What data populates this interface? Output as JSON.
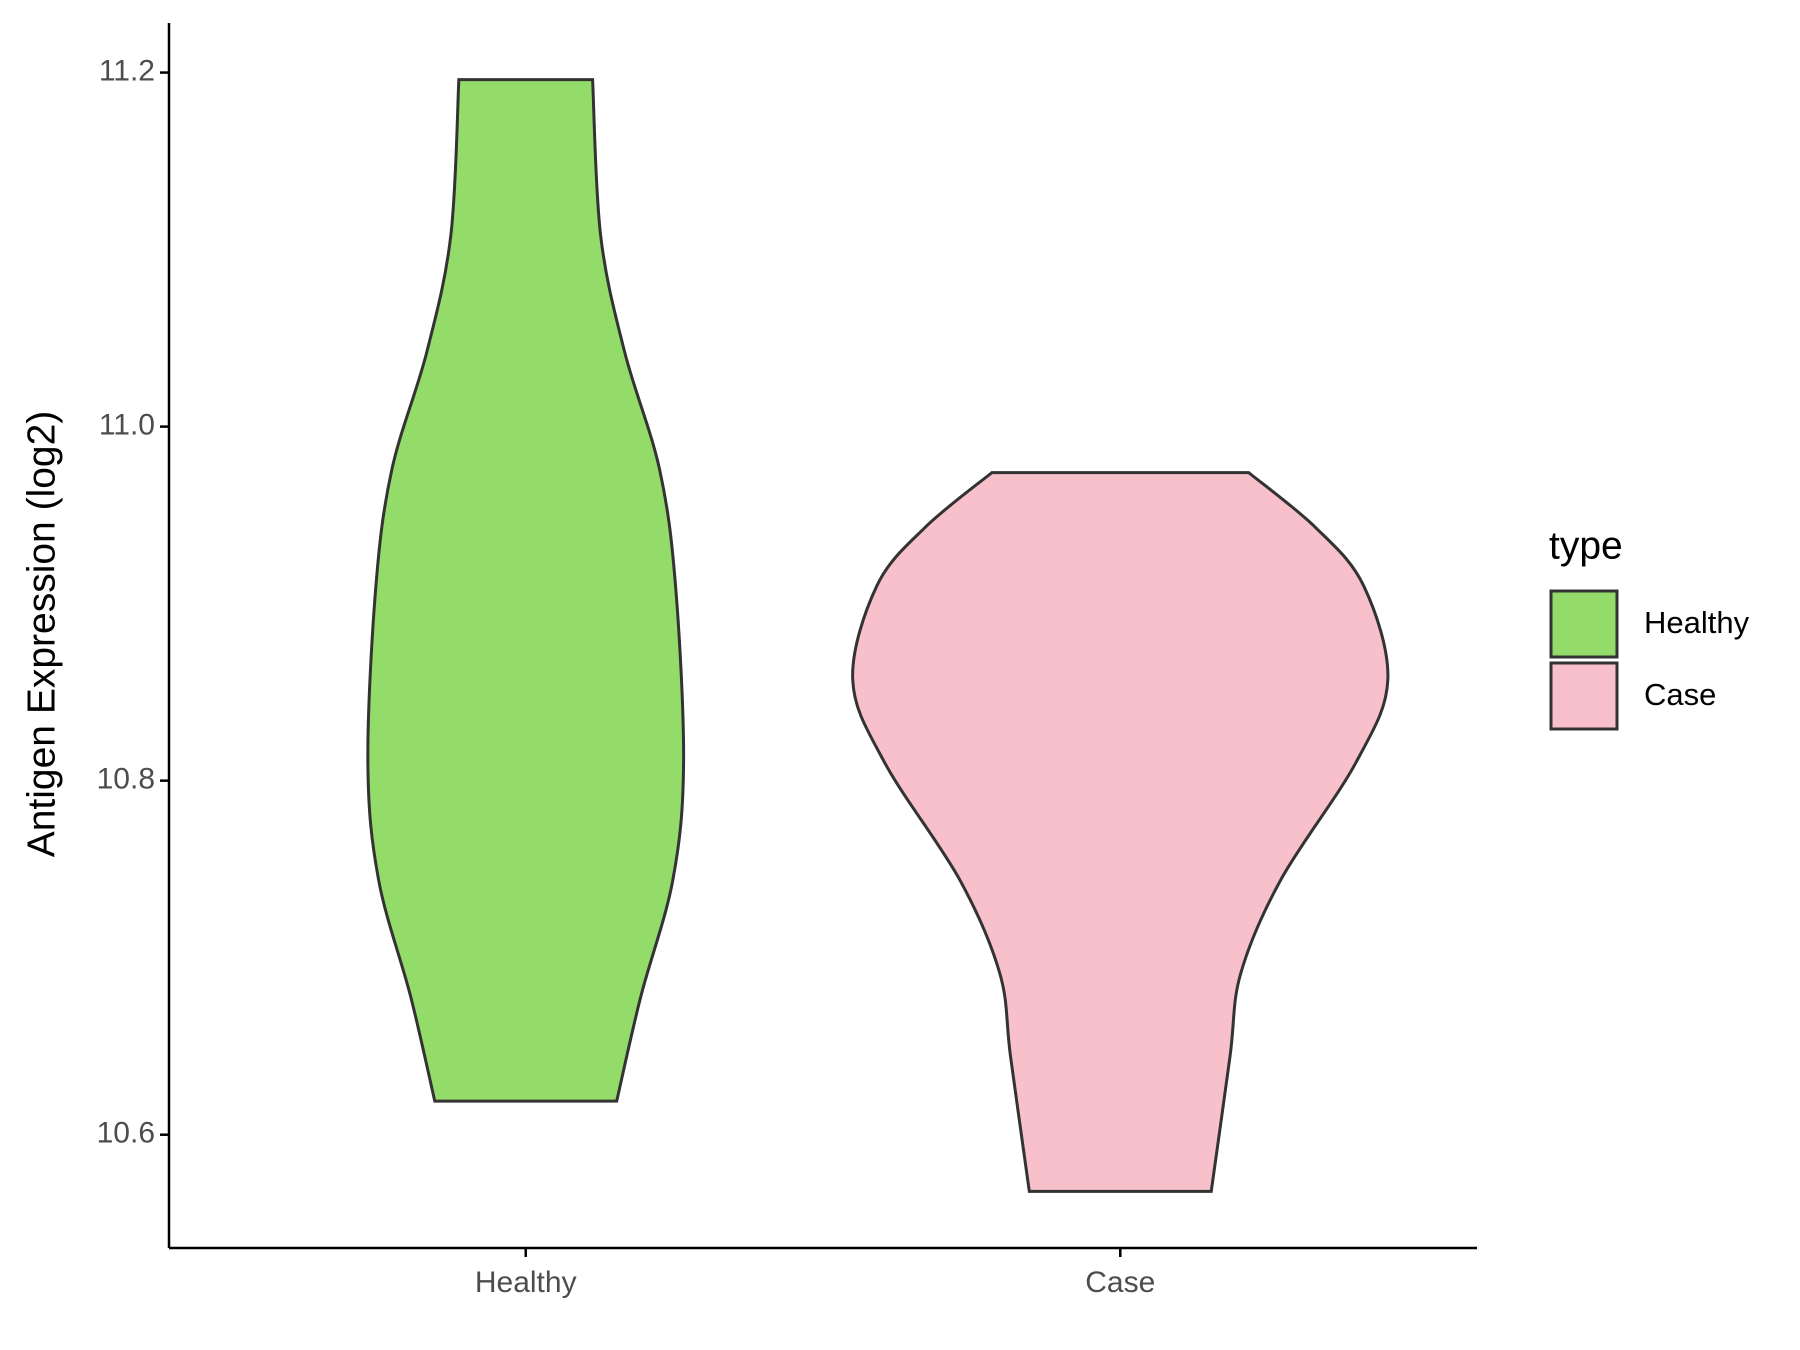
{
  "chart_data": {
    "type": "violin",
    "y_label": "Antigen Expression (log2)",
    "categories": [
      "Healthy",
      "Case"
    ],
    "ylim": [
      10.536,
      11.228
    ],
    "yticks": [
      10.6,
      10.8,
      {
        "value": 11,
        "label": "11.0"
      },
      11.2
    ],
    "legend_title": "type",
    "legend": "right",
    "series": [
      {
        "name": "Healthy",
        "color": "#94dc6a",
        "y": [
          11.196,
          11.108,
          11.042,
          10.976,
          10.91,
          10.81,
          10.744,
          10.678,
          10.619
        ],
        "width": [
          0.25,
          0.28,
          0.37,
          0.5,
          0.56,
          0.59,
          0.55,
          0.43,
          0.34
        ]
      },
      {
        "name": "Case",
        "color": "#f8c0cb",
        "y": [
          10.974,
          10.943,
          10.91,
          10.857,
          10.81,
          10.744,
          10.691,
          10.644,
          10.568
        ],
        "width": [
          0.48,
          0.73,
          0.91,
          1.0,
          0.88,
          0.6,
          0.45,
          0.41,
          0.34
        ]
      }
    ]
  }
}
